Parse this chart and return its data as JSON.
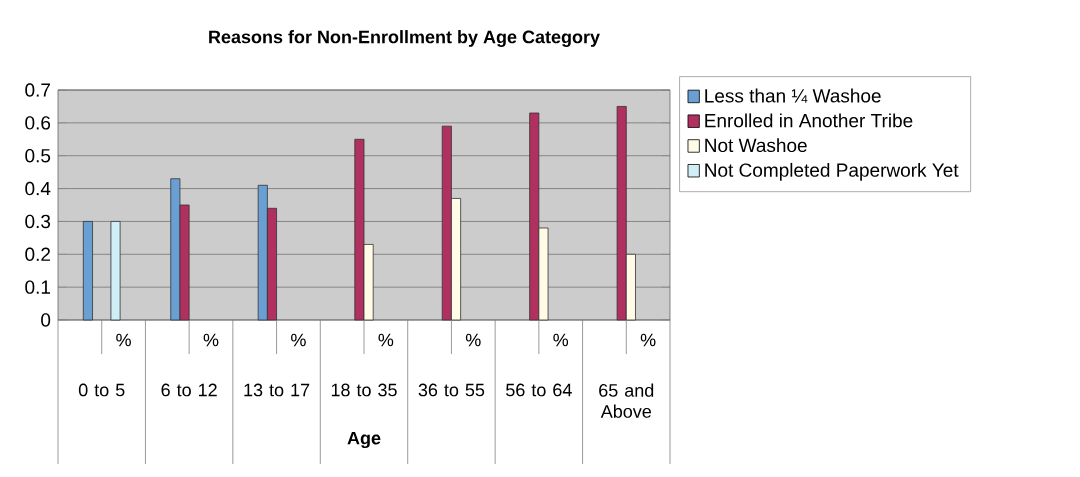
{
  "chart_data": {
    "type": "bar",
    "title": "Reasons for Non-Enrollment by Age Category",
    "xlabel": "Age",
    "categories": [
      "0 to 5",
      "6 to 12",
      "13 to 17",
      "18 to 35",
      "36 to 55",
      "56 to 64",
      "65 and Above"
    ],
    "annotations": [
      "%",
      "%",
      "%",
      "%",
      "%",
      "%",
      "%"
    ],
    "series": [
      {
        "name": "Less than ¼ Washoe",
        "color": "#6a9fd4",
        "values": [
          0.3,
          0.43,
          0.41,
          null,
          null,
          null,
          null
        ]
      },
      {
        "name": "Enrolled in Another Tribe",
        "color": "#b0305f",
        "values": [
          null,
          0.35,
          0.34,
          0.55,
          0.59,
          0.63,
          0.65
        ]
      },
      {
        "name": "Not Washoe",
        "color": "#fffbe6",
        "values": [
          null,
          null,
          null,
          0.23,
          0.37,
          0.28,
          0.2
        ]
      },
      {
        "name": "Not Completed Paperwork Yet",
        "color": "#cfeef5",
        "values": [
          0.3,
          null,
          null,
          null,
          null,
          null,
          null
        ]
      }
    ],
    "ylim": [
      0,
      0.7
    ],
    "yticks": [
      0,
      0.1,
      0.2,
      0.3,
      0.4,
      0.5,
      0.6,
      0.7
    ],
    "grid": "y",
    "legend": "top right"
  }
}
